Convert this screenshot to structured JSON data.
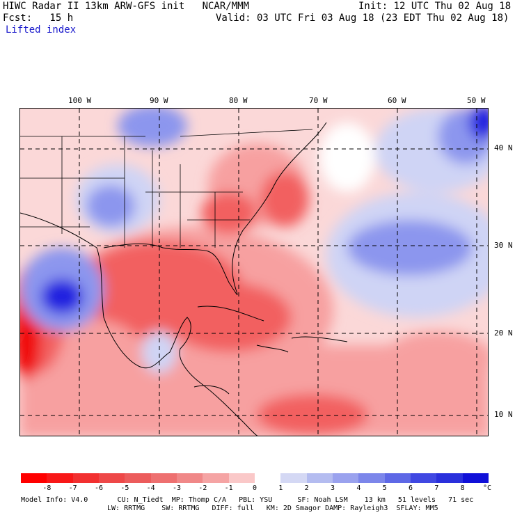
{
  "header": {
    "line1_left": "HIWC Radar II 13km ARW-GFS init   NCAR/MMM",
    "line1_right": "Init: 12 UTC Thu 02 Aug 18",
    "line2_left": "Fcst:   15 h",
    "line2_right": "Valid: 03 UTC Fri 03 Aug 18 (23 EDT Thu 02 Aug 18)",
    "field": "Lifted index"
  },
  "map": {
    "lon_labels": [
      "100 W",
      "90 W",
      "80 W",
      "70 W",
      "60 W",
      "50 W"
    ],
    "lat_labels": [
      "40 N",
      "30 N",
      "20 N",
      "10 N"
    ],
    "colors": {
      "deep_red": "#f01010",
      "red": "#f26060",
      "light_red": "#f7a0a0",
      "pink": "#fbd8d8",
      "white": "#ffffff",
      "light_blue": "#cfd4f5",
      "blue": "#8c96ee",
      "deep_blue": "#2020e0"
    }
  },
  "colorbar": {
    "labels": [
      "-8",
      "-7",
      "-6",
      "-5",
      "-4",
      "-3",
      "-2",
      "-1",
      "0",
      "1",
      "2",
      "3",
      "4",
      "5",
      "6",
      "7",
      "8"
    ],
    "unit": "°C",
    "colors": [
      "#ff0000",
      "#f81818",
      "#f23030",
      "#ee4848",
      "#ec5c5c",
      "#ee7070",
      "#f08888",
      "#f5a4a4",
      "#fac8c8",
      "#ffffff",
      "#d4d8f4",
      "#b4bcf0",
      "#9aa2ee",
      "#7c86ea",
      "#5e68e6",
      "#4048e2",
      "#2a30dc",
      "#1010d8"
    ]
  },
  "footer": {
    "line1": "Model Info: V4.0       CU: N_Tiedt  MP: Thomp C/A   PBL: YSU      SF: Noah LSM    13 km   51 levels   71 sec",
    "line2": "LW: RRTMG    SW: RRTMG   DIFF: full   KM: 2D Smagor DAMP: Rayleigh3  SFLAY: MM5"
  }
}
